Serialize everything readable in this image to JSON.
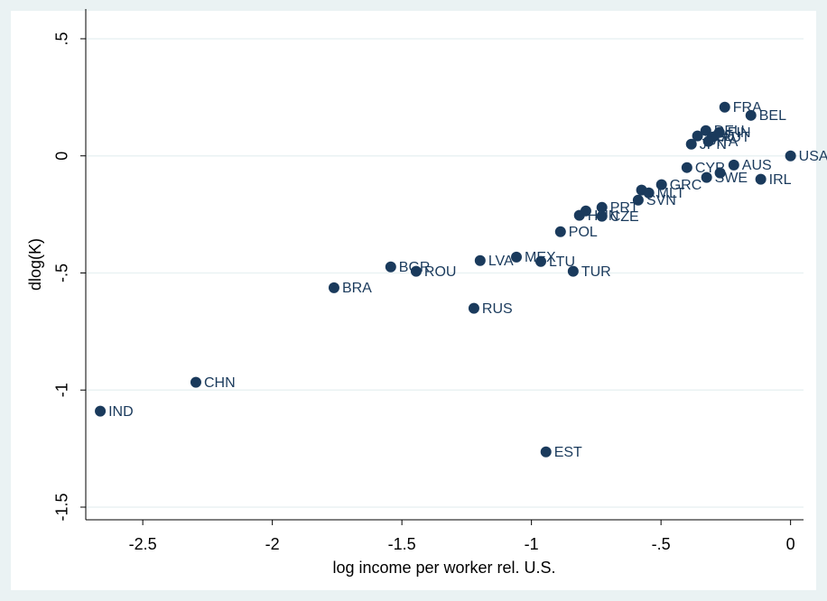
{
  "chart_data": {
    "type": "scatter",
    "xlabel": "log income per worker rel. U.S.",
    "ylabel": "dlog(K)",
    "color": "#1a3a5c",
    "grid": true,
    "xlim": [
      -2.72,
      0.05
    ],
    "ylim": [
      -1.554,
      0.627
    ],
    "xticks": [
      -2.5,
      -2,
      -1.5,
      -1,
      {
        "value": -0.5,
        "label": "-.5"
      },
      0
    ],
    "yticks": [
      -1.5,
      -1,
      {
        "value": -0.5,
        "label": "-.5"
      },
      0,
      {
        "value": 0.5,
        "label": ".5"
      }
    ],
    "labels": [
      "IND",
      "CHN",
      "BRA",
      "BGR",
      "ROU",
      "RUS",
      "LVA",
      "MEX",
      "LTU",
      "TUR",
      "EST",
      "POL",
      "HUN",
      null,
      "PRT",
      "CZE",
      "SVN",
      null,
      "MLT",
      "GRC",
      "CYP",
      "SWE",
      null,
      "AUS",
      "IRL",
      "USA",
      "FRA",
      "BEL",
      "JPN",
      "DEU",
      "NLD",
      "AUT",
      "FIN",
      "ITA"
    ],
    "x": [
      -2.664,
      -2.295,
      -1.762,
      -1.543,
      -1.445,
      -1.222,
      -1.198,
      -1.058,
      -0.964,
      -0.839,
      -0.944,
      -0.888,
      -0.815,
      -0.79,
      -0.728,
      -0.728,
      -0.588,
      -0.575,
      -0.547,
      -0.498,
      -0.4,
      -0.324,
      -0.272,
      -0.219,
      -0.115,
      0,
      -0.254,
      -0.153,
      -0.383,
      -0.327,
      -0.359,
      -0.299,
      -0.275,
      -0.317
    ],
    "y": [
      -1.09,
      -0.967,
      -0.563,
      -0.474,
      -0.493,
      -0.651,
      -0.447,
      -0.432,
      -0.451,
      -0.493,
      -1.264,
      -0.324,
      -0.254,
      -0.235,
      -0.22,
      -0.258,
      -0.189,
      -0.146,
      -0.158,
      -0.123,
      -0.05,
      -0.092,
      -0.073,
      -0.039,
      -0.1,
      0,
      0.208,
      0.173,
      0.05,
      0.108,
      0.085,
      0.081,
      0.1,
      0.062
    ]
  }
}
